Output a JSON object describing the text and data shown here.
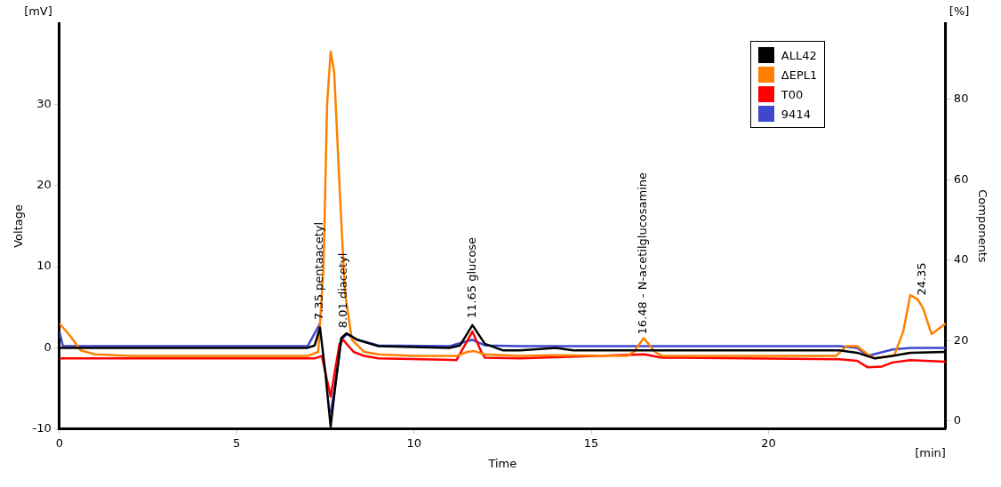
{
  "chart_data": {
    "type": "line",
    "xlabel": "Time",
    "ylabel": "Voltage",
    "y2label": "Components",
    "xlim": [
      0,
      25
    ],
    "xticks": [
      0,
      5,
      10,
      15,
      20
    ],
    "ylim": [
      -10,
      40
    ],
    "yticks": [
      -10,
      0,
      10,
      20,
      30
    ],
    "y2lim": [
      -2,
      99
    ],
    "y2ticks": [
      0,
      20,
      40,
      60,
      80
    ],
    "legend": "top right",
    "marker": "none",
    "line_style": "solid",
    "series": [
      {
        "name": "ALL42",
        "color": "#000000",
        "x": [
          0,
          7,
          7.2,
          7.35,
          7.5,
          7.65,
          7.8,
          7.95,
          8.1,
          8.4,
          9,
          10,
          11,
          11.3,
          11.65,
          12,
          12.5,
          13,
          14,
          14.5,
          15,
          22,
          22.5,
          23,
          23.5,
          24,
          25
        ],
        "values": [
          0,
          0,
          0.3,
          2.5,
          -3,
          -9.7,
          -4,
          1.2,
          1.8,
          1,
          0.2,
          0.1,
          0,
          0.3,
          2.8,
          0.5,
          -0.3,
          -0.3,
          0,
          -0.3,
          -0.3,
          -0.3,
          -0.6,
          -1.3,
          -1,
          -0.6,
          -0.5
        ]
      },
      {
        "name": "ΔEPL1",
        "color": "#ff8000",
        "x": [
          0,
          0.3,
          0.6,
          1,
          2,
          7,
          7.3,
          7.45,
          7.55,
          7.65,
          7.75,
          7.9,
          8.05,
          8.25,
          8.6,
          9,
          10,
          11.2,
          11.5,
          11.7,
          12,
          13,
          14,
          16,
          16.2,
          16.48,
          16.8,
          17,
          21.9,
          22.2,
          22.5,
          22.8,
          23,
          23.55,
          23.8,
          24,
          24.2,
          24.35,
          24.6,
          25
        ],
        "values": [
          3,
          1.5,
          -0.3,
          -0.8,
          -1,
          -1,
          -0.5,
          10,
          30,
          36.5,
          34,
          20,
          7,
          1,
          -0.5,
          -0.8,
          -1,
          -1,
          -0.5,
          -0.4,
          -0.8,
          -1,
          -0.9,
          -1,
          -0.5,
          1.2,
          -0.5,
          -1,
          -1,
          0.2,
          0.2,
          -0.8,
          -1.3,
          -0.9,
          2,
          6.5,
          6,
          5,
          1.7,
          3
        ]
      },
      {
        "name": "T00",
        "color": "#ff0000",
        "x": [
          0,
          7.2,
          7.4,
          7.65,
          7.9,
          8,
          8.3,
          8.6,
          9,
          11.2,
          11.65,
          11.9,
          12,
          13,
          16.5,
          17,
          22,
          22.5,
          22.8,
          23.2,
          23.5,
          24,
          25
        ],
        "values": [
          -1.3,
          -1.3,
          -1,
          -6,
          0.5,
          1,
          -0.5,
          -1,
          -1.3,
          -1.5,
          2,
          -0.5,
          -1.2,
          -1.3,
          -0.8,
          -1.2,
          -1.4,
          -1.6,
          -2.4,
          -2.3,
          -1.8,
          -1.5,
          -1.7
        ]
      },
      {
        "name": "9414",
        "color": "#3f48cc",
        "x": [
          0,
          0.1,
          7,
          7.35,
          7.5,
          7.65,
          7.8,
          7.95,
          8.1,
          8.4,
          9,
          11,
          11.65,
          12,
          13,
          22,
          22.5,
          22.8,
          23.5,
          24,
          25
        ],
        "values": [
          2,
          0.2,
          0.2,
          3,
          null,
          -8,
          -4,
          1,
          1.7,
          1,
          0.3,
          0.2,
          1,
          0.3,
          0.2,
          0.2,
          0,
          -1,
          -0.2,
          0,
          0
        ]
      }
    ],
    "annotations": [
      "[mV]",
      "[%]",
      "[min]",
      {
        "text": "7.35 pentaacetyl",
        "x": 7.35,
        "y": 3
      },
      {
        "text": "8.01 diacetyl",
        "x": 8.01,
        "y": 2
      },
      {
        "text": "11.65 glucose",
        "x": 11.65,
        "y": 3.2
      },
      {
        "text": "16.48 - N-acetilglucosamine",
        "x": 16.48,
        "y": 1.2
      },
      {
        "text": "24.35",
        "x": 24.35,
        "y": 6
      }
    ]
  }
}
